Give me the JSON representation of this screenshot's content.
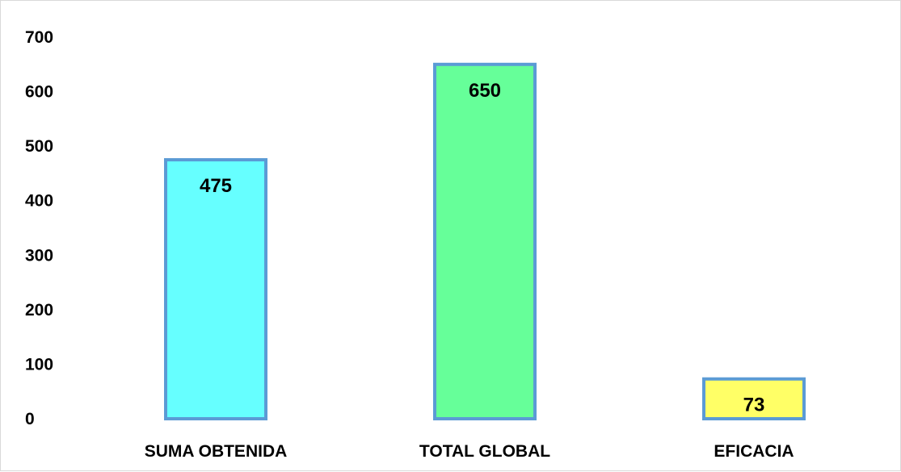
{
  "chart_data": {
    "type": "bar",
    "title": "",
    "xlabel": "",
    "ylabel": "",
    "categories": [
      "SUMA OBTENIDA",
      "TOTAL GLOBAL",
      "EFICACIA"
    ],
    "values": [
      475,
      650,
      73
    ],
    "data_labels": [
      "475",
      "650",
      "73"
    ],
    "y_ticks": [
      "0",
      "100",
      "200",
      "300",
      "400",
      "500",
      "600",
      "700"
    ],
    "ylim": [
      0,
      700
    ],
    "grid": false,
    "legend": "none",
    "colors": {
      "bars": [
        "#66ffff",
        "#66ff99",
        "#ffff66"
      ],
      "bar_border": "#5b9bd5"
    }
  }
}
